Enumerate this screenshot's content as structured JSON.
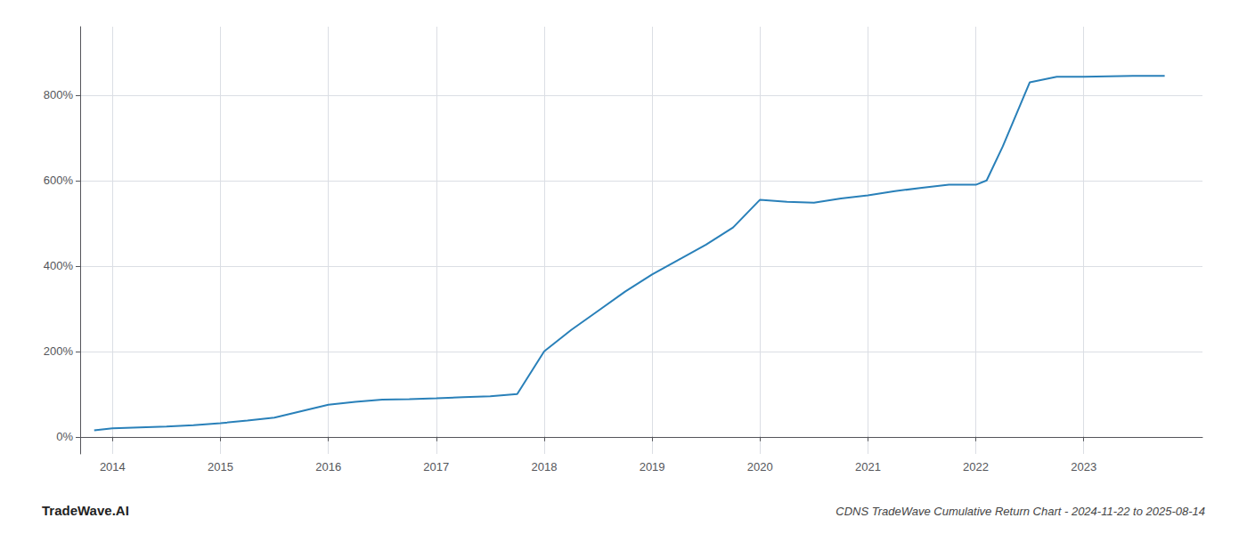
{
  "chart_data": {
    "type": "line",
    "title": "CDNS TradeWave Cumulative Return Chart - 2024-11-22 to 2025-08-14",
    "annotations": [
      "TradeWave.AI"
    ],
    "x": [
      2013.83,
      2014.0,
      2014.25,
      2014.5,
      2014.75,
      2015.0,
      2015.25,
      2015.5,
      2015.75,
      2016.0,
      2016.25,
      2016.5,
      2016.75,
      2017.0,
      2017.25,
      2017.5,
      2017.75,
      2018.0,
      2018.25,
      2018.5,
      2018.75,
      2019.0,
      2019.25,
      2019.5,
      2019.75,
      2020.0,
      2020.25,
      2020.5,
      2020.75,
      2021.0,
      2021.25,
      2021.5,
      2021.75,
      2022.0,
      2022.1,
      2022.25,
      2022.5,
      2022.75,
      2023.0,
      2023.5,
      2023.75
    ],
    "values": [
      15,
      20,
      22,
      24,
      27,
      32,
      38,
      45,
      60,
      75,
      82,
      87,
      88,
      90,
      93,
      95,
      100,
      200,
      250,
      295,
      340,
      380,
      415,
      450,
      490,
      555,
      550,
      548,
      558,
      565,
      575,
      583,
      590,
      590,
      600,
      680,
      830,
      843,
      843,
      845,
      845
    ],
    "color": "#2980b9",
    "xlim": [
      2013.7,
      2024.1
    ],
    "ylim": [
      -40,
      960
    ],
    "xticks": [
      2014,
      2015,
      2016,
      2017,
      2018,
      2019,
      2020,
      2021,
      2022,
      2023
    ],
    "yticks": [
      {
        "value": 0,
        "label": "0%"
      },
      {
        "value": 200,
        "label": "200%"
      },
      {
        "value": 400,
        "label": "400%"
      },
      {
        "value": 600,
        "label": "600%"
      },
      {
        "value": 800,
        "label": "800%"
      }
    ],
    "grid": true
  }
}
